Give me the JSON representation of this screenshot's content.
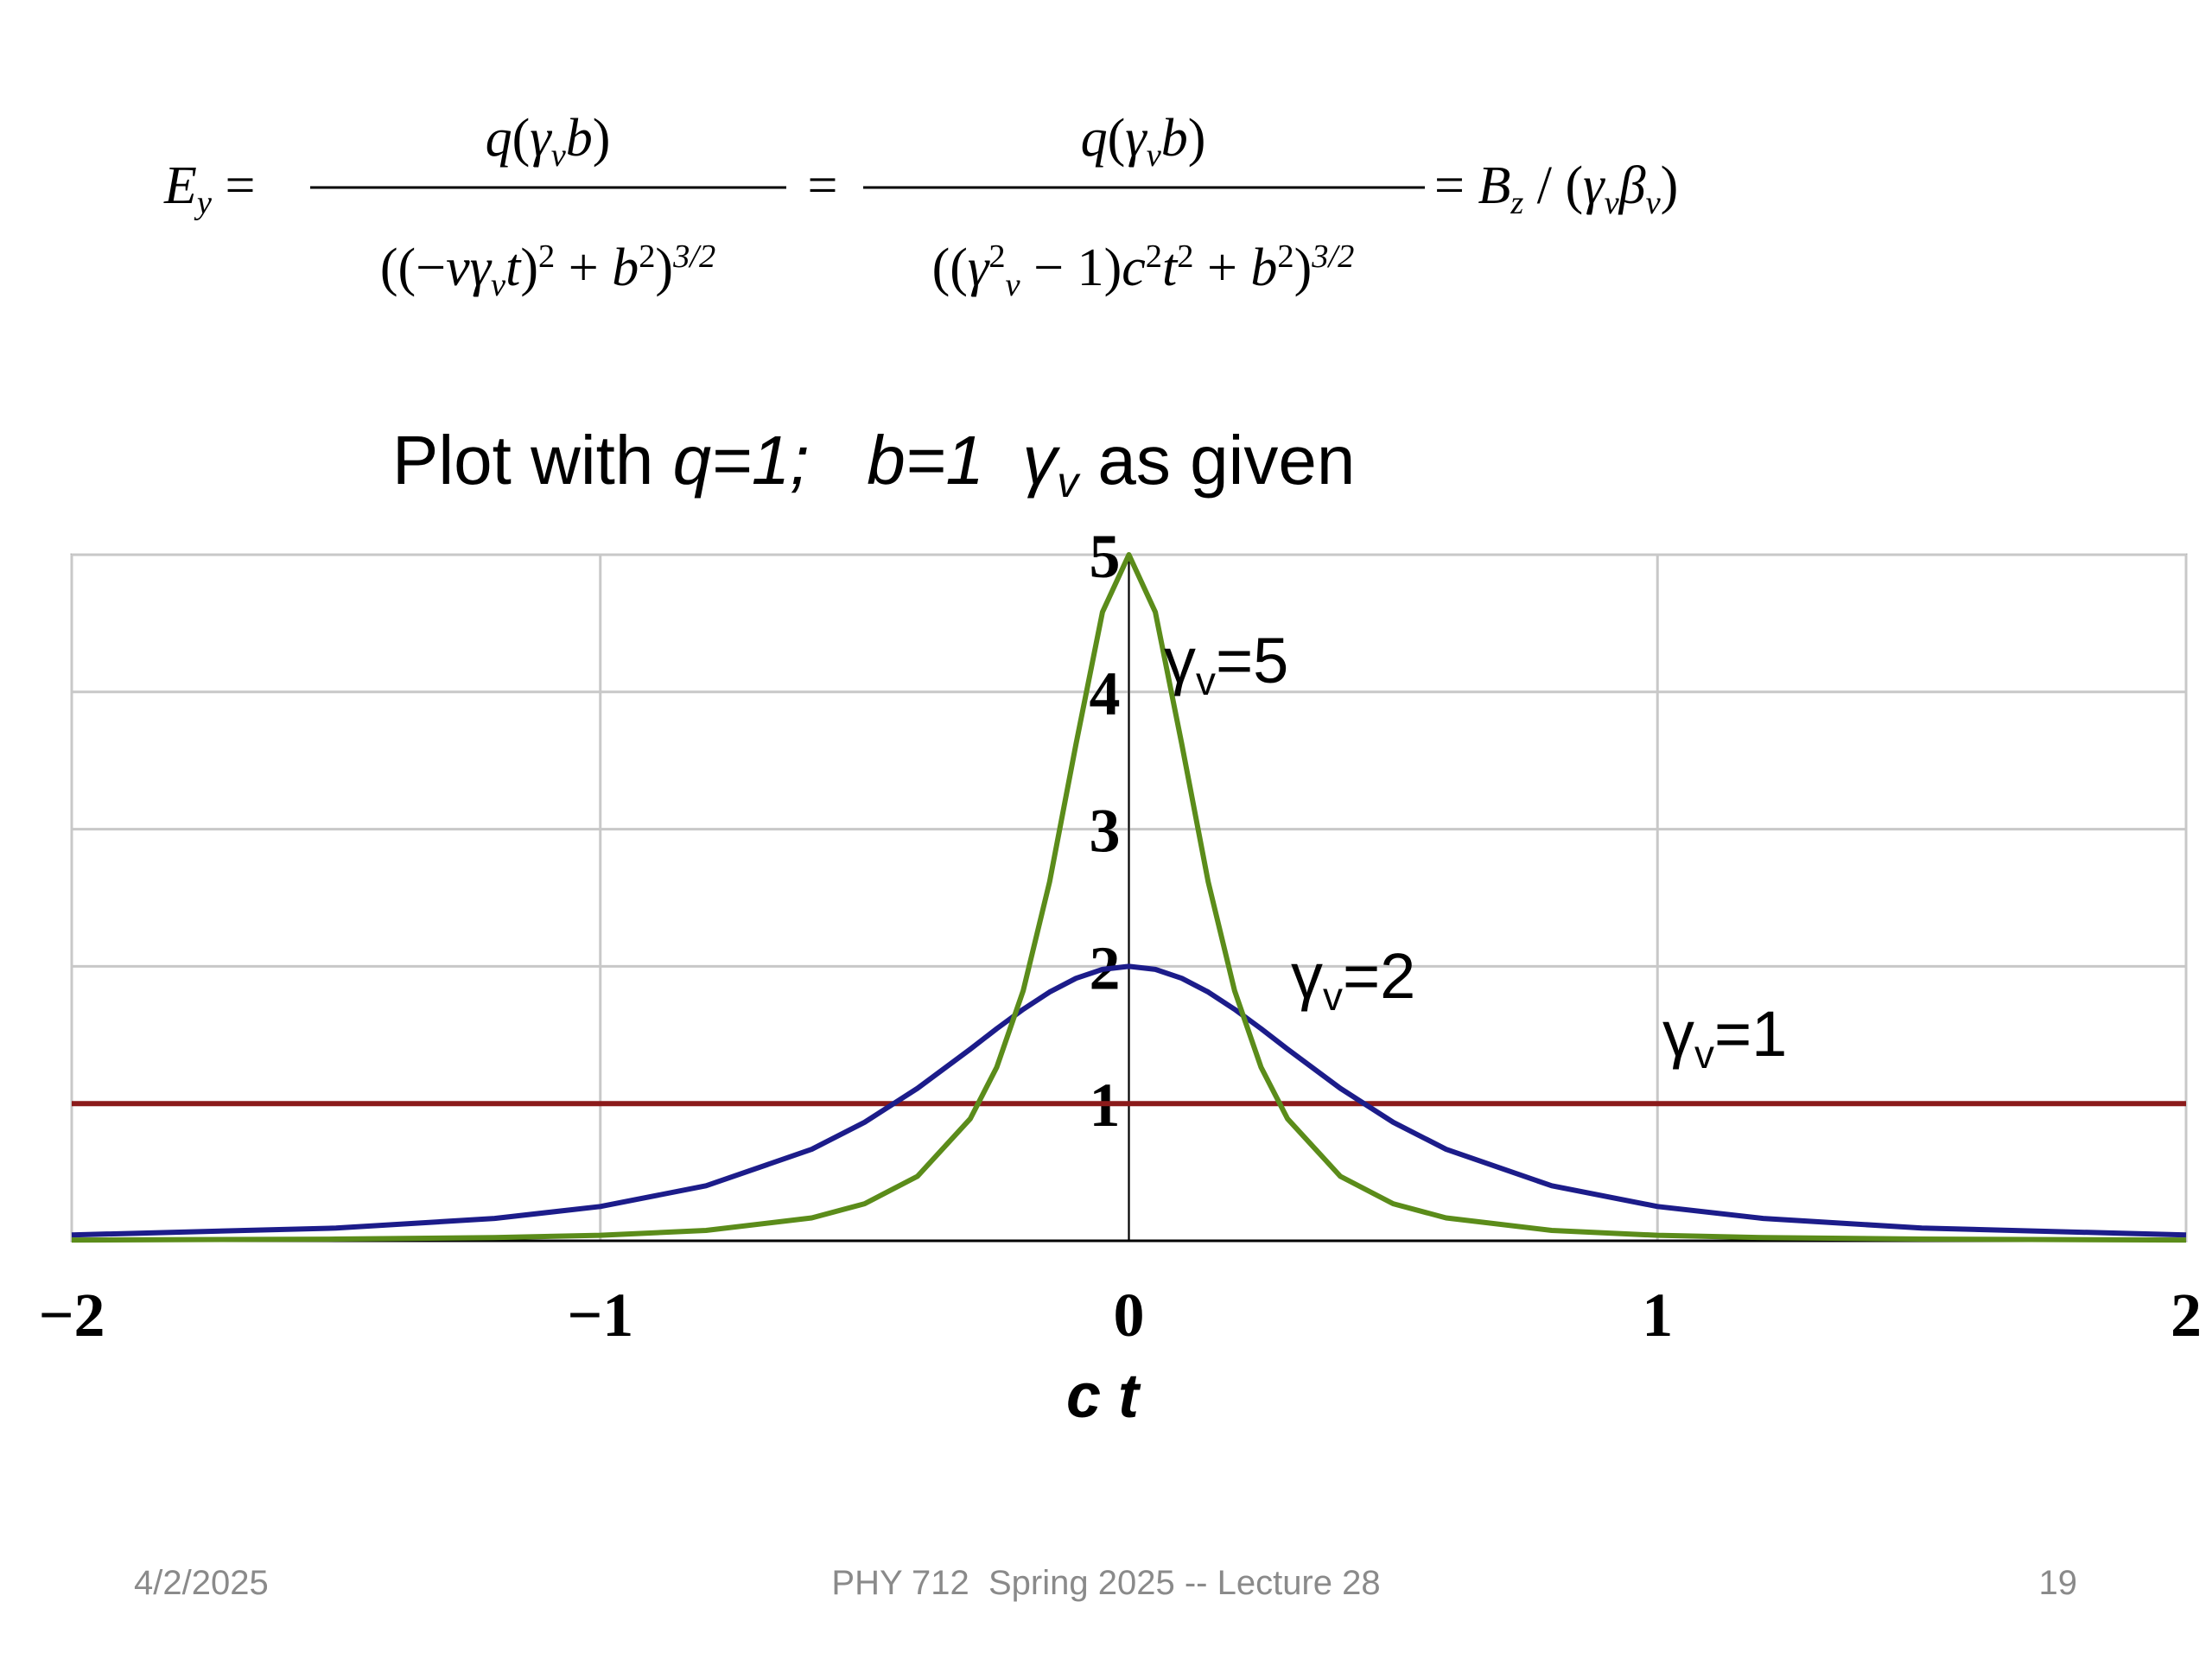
{
  "equation": {
    "lhs": [
      {
        "t": "E",
        "i": true
      },
      {
        "t": "y",
        "i": true,
        "s": "sub"
      },
      {
        "t": " ="
      }
    ],
    "frac1": {
      "num": [
        {
          "t": "q",
          "i": true
        },
        {
          "t": "("
        },
        {
          "t": "γ",
          "i": true
        },
        {
          "t": "v",
          "i": true,
          "s": "sub"
        },
        {
          "t": "b",
          "i": true
        },
        {
          "t": ")"
        }
      ],
      "den": [
        {
          "t": "(("
        },
        {
          "t": "−"
        },
        {
          "t": "vγ",
          "i": true
        },
        {
          "t": "v",
          "i": true,
          "s": "sub"
        },
        {
          "t": "t",
          "i": true
        },
        {
          "t": ")"
        },
        {
          "t": "2",
          "s": "sup"
        },
        {
          "t": " + "
        },
        {
          "t": "b",
          "i": true
        },
        {
          "t": "2",
          "s": "sup"
        },
        {
          "t": ")"
        },
        {
          "t": "3/2",
          "i": true,
          "s": "sup"
        }
      ]
    },
    "eq1": [
      {
        "t": "="
      }
    ],
    "frac2": {
      "num": [
        {
          "t": "q",
          "i": true
        },
        {
          "t": "("
        },
        {
          "t": "γ",
          "i": true
        },
        {
          "t": "v",
          "i": true,
          "s": "sub"
        },
        {
          "t": "b",
          "i": true
        },
        {
          "t": ")"
        }
      ],
      "den": [
        {
          "t": "(("
        },
        {
          "t": "γ",
          "i": true
        },
        {
          "t": "2",
          "s": "sup"
        },
        {
          "t": "v",
          "i": true,
          "s": "sub"
        },
        {
          "t": " − 1)"
        },
        {
          "t": "c",
          "i": true
        },
        {
          "t": "2",
          "s": "sup"
        },
        {
          "t": "t",
          "i": true
        },
        {
          "t": "2",
          "s": "sup"
        },
        {
          "t": " + "
        },
        {
          "t": "b",
          "i": true
        },
        {
          "t": "2",
          "s": "sup"
        },
        {
          "t": ")"
        },
        {
          "t": "3/2",
          "i": true,
          "s": "sup"
        }
      ]
    },
    "rhs": [
      {
        "t": "= "
      },
      {
        "t": "B",
        "i": true
      },
      {
        "t": "z",
        "i": true,
        "s": "sub"
      },
      {
        "t": " / ("
      },
      {
        "t": "γ",
        "i": true
      },
      {
        "t": "v",
        "i": true,
        "s": "sub"
      },
      {
        "t": "β",
        "i": true
      },
      {
        "t": "v",
        "i": true,
        "s": "sub"
      },
      {
        "t": ")"
      }
    ]
  },
  "subtitle": [
    {
      "t": "Plot with "
    },
    {
      "t": "q=1;   b=1  ",
      "i": true
    },
    {
      "t": "γ",
      "i": true
    },
    {
      "t": "v",
      "i": true,
      "s": "sub"
    },
    {
      "t": " as given"
    }
  ],
  "chart_data": {
    "type": "line",
    "x_label": "c t",
    "x": [
      -2,
      -1.5,
      -1.2,
      -1,
      -0.8,
      -0.6,
      -0.5,
      -0.4,
      -0.3,
      -0.25,
      -0.2,
      -0.15,
      -0.1,
      -0.05,
      0,
      0.05,
      0.1,
      0.15,
      0.2,
      0.25,
      0.3,
      0.4,
      0.5,
      0.6,
      0.8,
      1,
      1.2,
      1.5,
      2
    ],
    "series": [
      {
        "color": "#8b1a1a",
        "values": [
          1,
          1,
          1,
          1,
          1,
          1,
          1,
          1,
          1,
          1,
          1,
          1,
          1,
          1,
          1,
          1,
          1,
          1,
          1,
          1,
          1,
          1,
          1,
          1,
          1,
          1,
          1,
          1,
          1
        ]
      },
      {
        "color": "#1c1c8a",
        "values": [
          0.0427,
          0.0927,
          0.163,
          0.25,
          0.401,
          0.667,
          0.864,
          1.111,
          1.397,
          1.546,
          1.687,
          1.813,
          1.913,
          1.978,
          2,
          1.978,
          1.913,
          1.813,
          1.687,
          1.546,
          1.397,
          1.111,
          0.864,
          0.667,
          0.401,
          0.25,
          0.163,
          0.0927,
          0.0427
        ]
      },
      {
        "color": "#5b8c1a",
        "values": [
          0.00523,
          0.0123,
          0.0236,
          0.04,
          0.0756,
          0.167,
          0.27,
          0.47,
          0.89,
          1.265,
          1.822,
          2.616,
          3.621,
          4.582,
          5,
          4.582,
          3.621,
          2.616,
          1.822,
          1.265,
          0.89,
          0.47,
          0.27,
          0.167,
          0.0756,
          0.04,
          0.0236,
          0.0123,
          0.00523
        ]
      }
    ],
    "annotations": [
      {
        "runs": [
          {
            "t": "γ"
          },
          {
            "t": "v",
            "s": "sub"
          },
          {
            "t": "=5"
          }
        ]
      },
      {
        "runs": [
          {
            "t": "γ"
          },
          {
            "t": "v",
            "s": "sub"
          },
          {
            "t": "=2"
          }
        ]
      },
      {
        "runs": [
          {
            "t": "γ"
          },
          {
            "t": "v",
            "s": "sub"
          },
          {
            "t": "=1"
          }
        ]
      }
    ],
    "xlim": [
      -2,
      2
    ],
    "ylim": [
      0,
      5
    ],
    "xticks": [
      {
        "value": -2,
        "label": "−2"
      },
      {
        "value": -1,
        "label": "−1"
      },
      0,
      1,
      2
    ],
    "yticks": [
      1,
      2,
      3,
      4,
      5
    ],
    "grid": true
  },
  "footer": {
    "date": "4/2/2025",
    "course": "PHY 712  Spring 2025 -- Lecture 28",
    "page": "19"
  }
}
